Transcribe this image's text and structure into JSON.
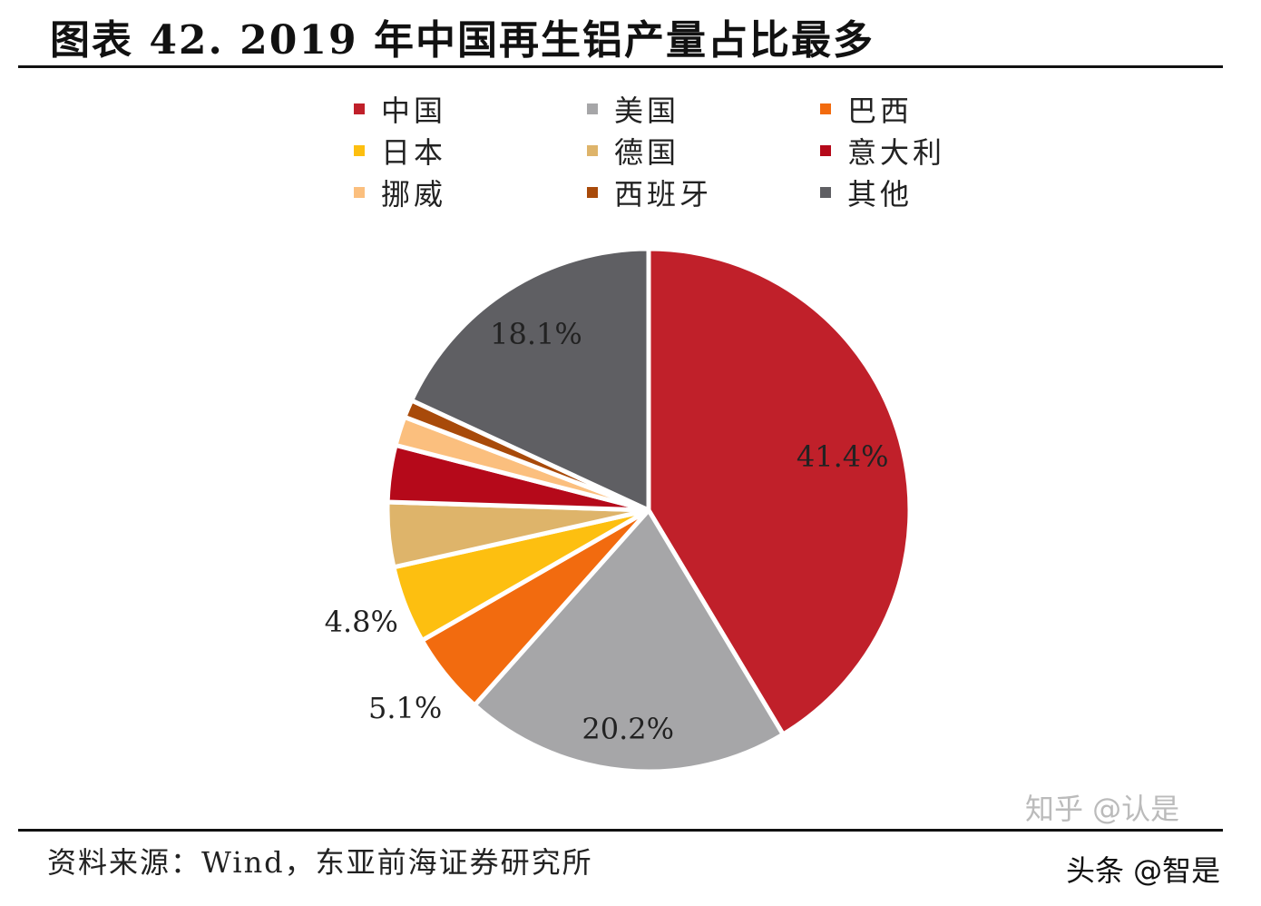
{
  "chart_data": {
    "type": "pie",
    "title": "图表 42. 2019 年中国再生铝产量占比最多",
    "categories": [
      "中国",
      "美国",
      "巴西",
      "日本",
      "德国",
      "意大利",
      "挪威",
      "西班牙",
      "其他"
    ],
    "values": [
      41.4,
      20.2,
      5.1,
      4.8,
      4.0,
      3.5,
      1.8,
      1.1,
      18.1
    ],
    "data_labels": [
      "41.4%",
      "20.2%",
      "5.1%",
      "4.8%",
      "",
      "",
      "",
      "",
      "18.1%"
    ],
    "colors": [
      "#c0202a",
      "#a6a6a8",
      "#f26b0f",
      "#fdbf10",
      "#deb46a",
      "#b5091a",
      "#fbbf7e",
      "#a84a0a",
      "#5f5f63"
    ],
    "legend_position": "top",
    "start_angle": "12 o'clock, clockwise"
  },
  "source": "资料来源：Wind，东亚前海证券研究所",
  "watermarks": [
    "知乎 @认是",
    "头条 @智是"
  ]
}
